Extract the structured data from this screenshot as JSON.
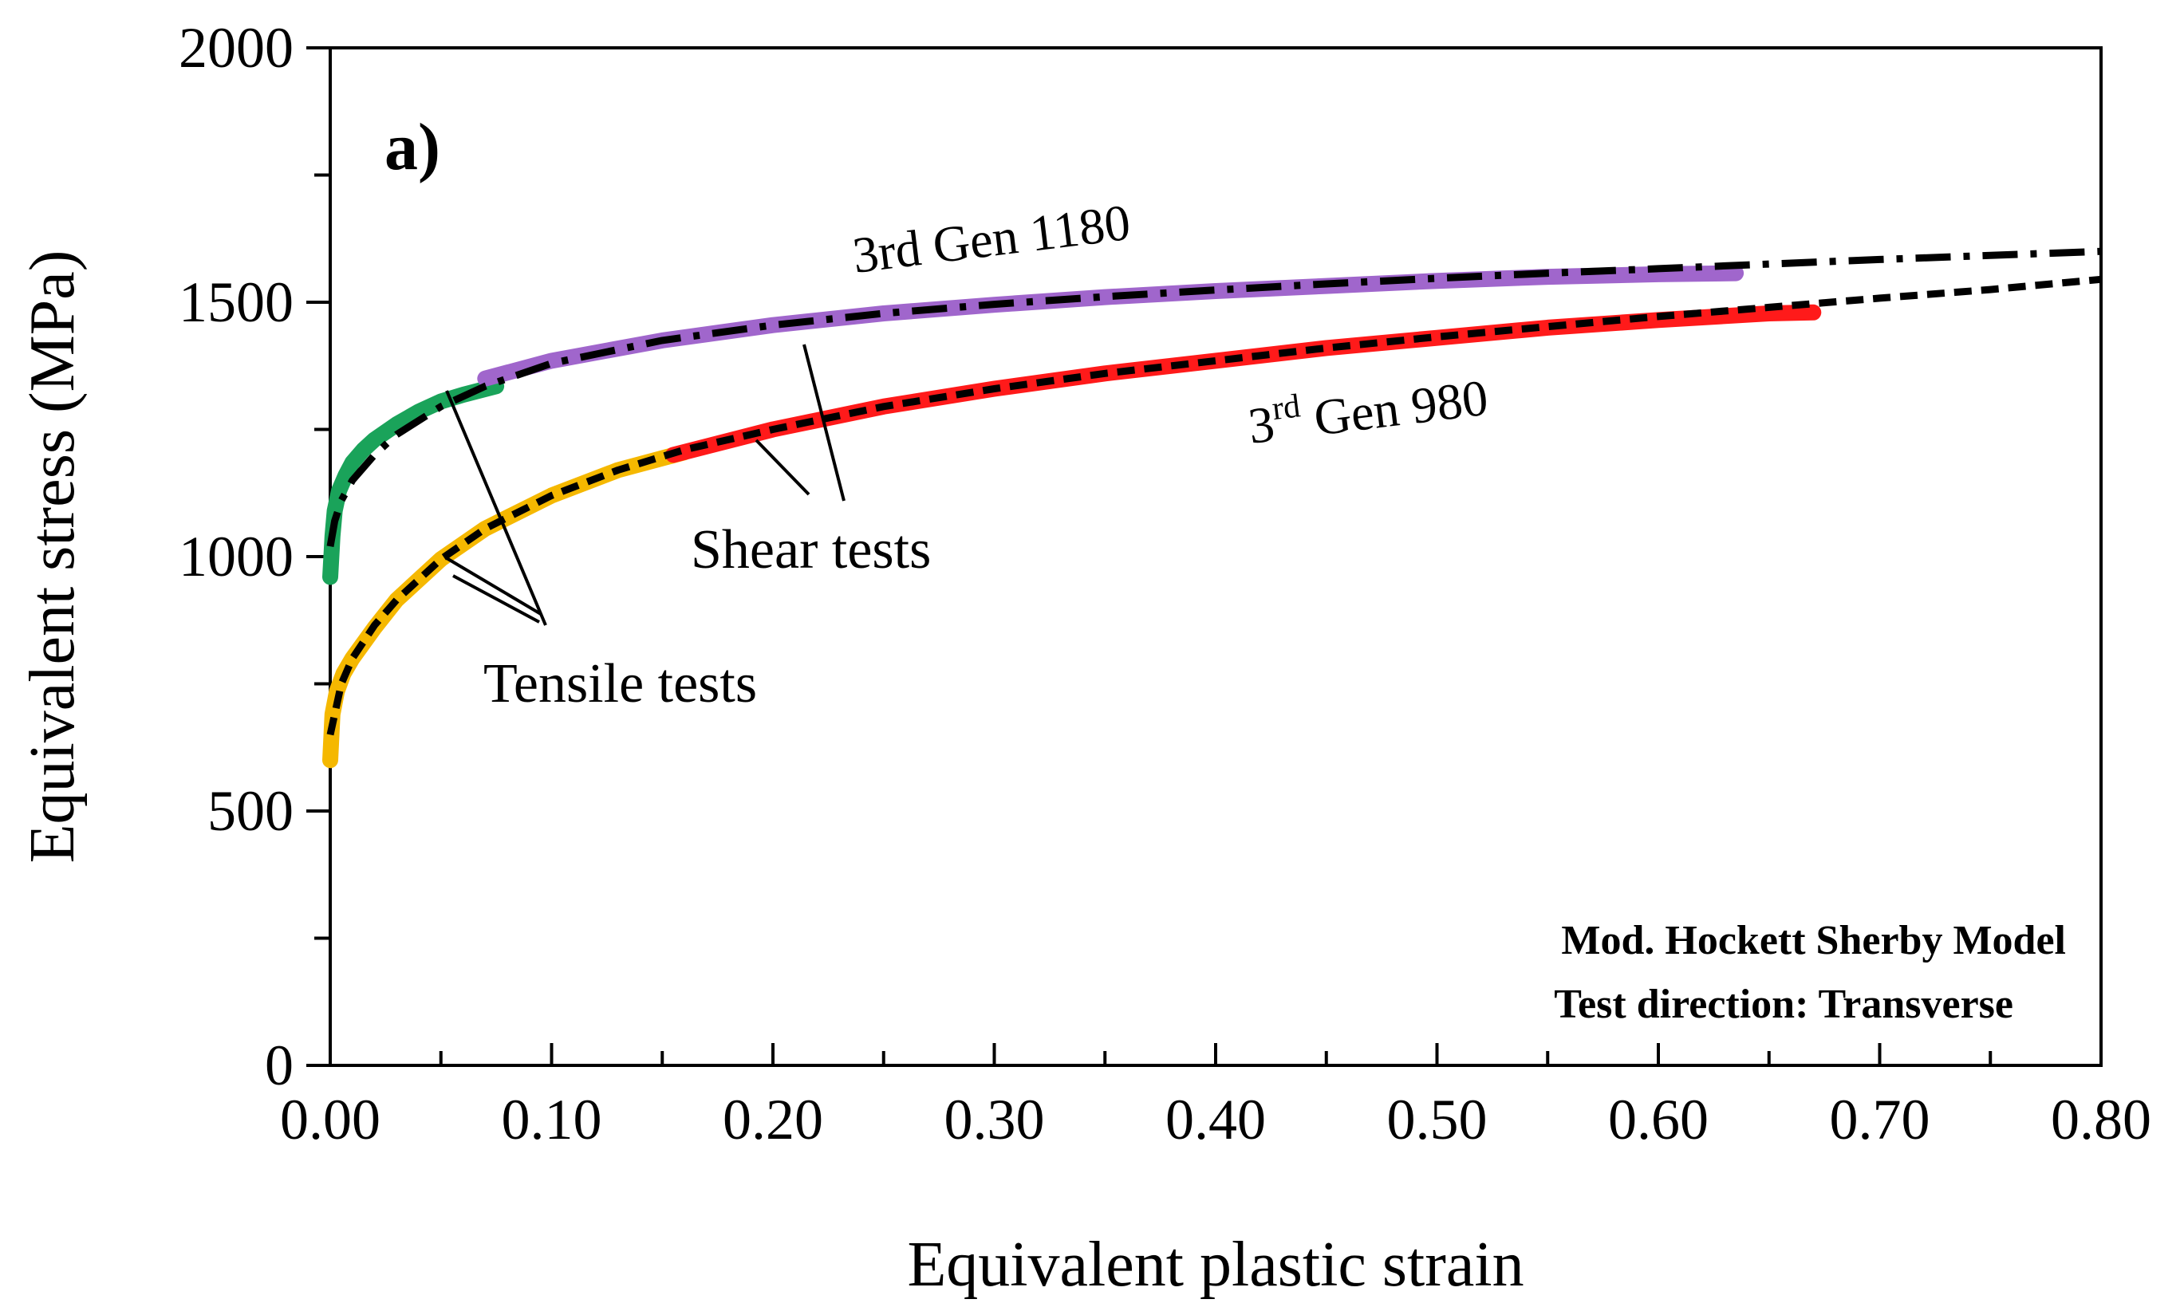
{
  "panel_label": "a)",
  "info_box": {
    "line1": "Mod. Hockett Sherby Model",
    "line2": "Test direction: Transverse"
  },
  "series_labels": {
    "gen1180": "3rd Gen  1180",
    "gen980_base": "3",
    "gen980_sup": "rd",
    "gen980_rest": " Gen  980"
  },
  "annotations": {
    "shear": "Shear tests",
    "tensile": "Tensile tests"
  },
  "colors": {
    "tensile_1180": "#1aa35a",
    "shear_1180": "#a066cc",
    "tensile_980": "#f5b800",
    "shear_980": "#ff1a1a",
    "model": "#000000"
  },
  "chart_data": {
    "type": "line",
    "title": "",
    "xlabel": "Equivalent plastic strain",
    "ylabel": "Equivalent stress (MPa)",
    "xlim": [
      0,
      0.8
    ],
    "ylim": [
      0,
      2000
    ],
    "xticks": [
      0,
      0.1,
      0.2,
      0.3,
      0.4,
      0.5,
      0.6,
      0.7,
      0.8
    ],
    "xtick_labels": [
      "0.00",
      "0.10",
      "0.20",
      "0.30",
      "0.40",
      "0.50",
      "0.60",
      "0.70",
      "0.80"
    ],
    "yticks": [
      0,
      500,
      1000,
      1500,
      2000
    ],
    "ytick_labels": [
      "0",
      "500",
      "1000",
      "1500",
      "2000"
    ],
    "y_minor_step": 250,
    "x_minor_step": 0.05,
    "grid": false,
    "series": [
      {
        "name": "3rd Gen 1180 tensile test",
        "style": "thick",
        "color_key": "tensile_1180",
        "x": [
          0.0,
          0.001,
          0.002,
          0.004,
          0.007,
          0.01,
          0.015,
          0.02,
          0.03,
          0.04,
          0.05,
          0.06,
          0.075
        ],
        "y": [
          960,
          1040,
          1090,
          1130,
          1160,
          1185,
          1210,
          1230,
          1260,
          1285,
          1305,
          1318,
          1335
        ]
      },
      {
        "name": "3rd Gen 1180 shear test",
        "style": "thick",
        "color_key": "shear_1180",
        "x": [
          0.07,
          0.1,
          0.15,
          0.2,
          0.25,
          0.3,
          0.35,
          0.4,
          0.45,
          0.5,
          0.55,
          0.6,
          0.635
        ],
        "y": [
          1350,
          1385,
          1425,
          1455,
          1478,
          1495,
          1510,
          1522,
          1532,
          1542,
          1550,
          1555,
          1557
        ]
      },
      {
        "name": "3rd Gen 980 tensile test",
        "style": "thick",
        "color_key": "tensile_980",
        "x": [
          0.0,
          0.001,
          0.003,
          0.006,
          0.01,
          0.02,
          0.03,
          0.05,
          0.07,
          0.1,
          0.13,
          0.16
        ],
        "y": [
          600,
          690,
          735,
          770,
          800,
          860,
          915,
          995,
          1055,
          1120,
          1170,
          1205
        ]
      },
      {
        "name": "3rd Gen 980 shear test",
        "style": "thick",
        "color_key": "shear_980",
        "x": [
          0.155,
          0.2,
          0.25,
          0.3,
          0.35,
          0.4,
          0.45,
          0.5,
          0.55,
          0.6,
          0.65,
          0.67
        ],
        "y": [
          1200,
          1250,
          1295,
          1330,
          1360,
          1385,
          1410,
          1430,
          1450,
          1465,
          1478,
          1480
        ]
      },
      {
        "name": "Model fit 3rd Gen 1180",
        "style": "dashdot",
        "color_key": "model",
        "x": [
          0.0,
          0.002,
          0.005,
          0.01,
          0.02,
          0.03,
          0.05,
          0.07,
          0.1,
          0.15,
          0.2,
          0.25,
          0.3,
          0.35,
          0.4,
          0.45,
          0.5,
          0.55,
          0.6,
          0.65,
          0.7,
          0.75,
          0.8
        ],
        "y": [
          1020,
          1070,
          1110,
          1150,
          1200,
          1240,
          1295,
          1335,
          1380,
          1425,
          1455,
          1478,
          1496,
          1511,
          1524,
          1536,
          1547,
          1557,
          1566,
          1575,
          1584,
          1592,
          1600
        ]
      },
      {
        "name": "Model fit 3rd Gen 980",
        "style": "dashed",
        "color_key": "model",
        "x": [
          0.0,
          0.005,
          0.01,
          0.02,
          0.03,
          0.05,
          0.07,
          0.1,
          0.13,
          0.16,
          0.2,
          0.25,
          0.3,
          0.35,
          0.4,
          0.45,
          0.5,
          0.55,
          0.6,
          0.65,
          0.7,
          0.75,
          0.8
        ],
        "y": [
          650,
          750,
          800,
          865,
          915,
          995,
          1055,
          1120,
          1170,
          1210,
          1250,
          1295,
          1330,
          1360,
          1385,
          1410,
          1432,
          1452,
          1472,
          1490,
          1508,
          1525,
          1545
        ]
      }
    ]
  }
}
